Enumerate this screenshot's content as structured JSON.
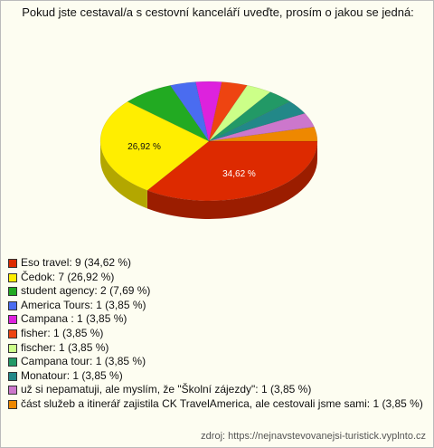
{
  "chart_data": {
    "type": "pie3d",
    "title": "Pokud jste cestaval/a s cestovní kanceláří uveďte, prosím o jakou se jedná:",
    "categories": [
      "Eso travel: 9 (34,62 %)",
      "Čedok: 7 (26,92 %)",
      "student agency: 2 (7,69 %)",
      "America Tours: 1 (3,85 %)",
      "Campana : 1 (3,85 %)",
      "fisher: 1 (3,85 %)",
      "fischer: 1 (3,85 %)",
      "Campana tour: 1 (3,85 %)",
      "Monatour: 1 (3,85 %)",
      "už si nepamatuji, ale myslím, že \"Školní zájezdy\": 1 (3,85 %)",
      "část služeb a itinerář  zajistila CK TravelAmerica, ale cestovali jsme sami: 1 (3,85 %)"
    ],
    "values": [
      34.62,
      26.92,
      7.69,
      3.85,
      3.85,
      3.85,
      3.85,
      3.85,
      3.85,
      3.85,
      3.85
    ],
    "value_labels": [
      "34,62 %",
      "26,92 %",
      null,
      null,
      null,
      null,
      null,
      null,
      null,
      null,
      null
    ],
    "colors": [
      "#dd2a00",
      "#ffee00",
      "#22aa22",
      "#4a6cf0",
      "#dd22dd",
      "#ee4411",
      "#ccff88",
      "#229966",
      "#228888",
      "#cc77cc",
      "#ee8800"
    ],
    "source": "zdroj: https://nejnavstevovanejsi-turistick.vyplnto.cz"
  }
}
